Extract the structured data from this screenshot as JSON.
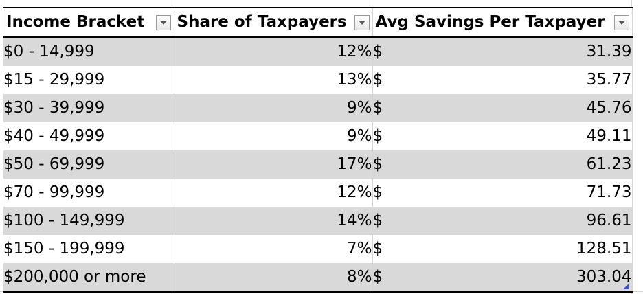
{
  "table": {
    "headers": [
      "Income Bracket",
      "Share of Taxpayers",
      "Avg Savings Per Taxpayer"
    ],
    "currency_symbol": "$",
    "rows": [
      {
        "bracket": "$0 - 14,999",
        "share": "12%",
        "savings": "31.39"
      },
      {
        "bracket": "$15 - 29,999",
        "share": "13%",
        "savings": "35.77"
      },
      {
        "bracket": "$30 - 39,999",
        "share": "9%",
        "savings": "45.76"
      },
      {
        "bracket": "$40 - 49,999",
        "share": "9%",
        "savings": "49.11"
      },
      {
        "bracket": "$50 - 69,999",
        "share": "17%",
        "savings": "61.23"
      },
      {
        "bracket": "$70 - 99,999",
        "share": "12%",
        "savings": "71.73"
      },
      {
        "bracket": "$100 - 149,999",
        "share": "14%",
        "savings": "96.61"
      },
      {
        "bracket": "$150 - 199,999",
        "share": "7%",
        "savings": "128.51"
      },
      {
        "bracket": "$200,000 or more",
        "share": "8%",
        "savings": "303.04"
      }
    ]
  },
  "icons": {
    "filter": "filter-dropdown-icon",
    "resize": "table-resize-handle-icon"
  },
  "colors": {
    "band": "#d9d9d9",
    "border": "#000000",
    "gridline": "#d4d4d4",
    "resize_handle": "#3a56c4"
  }
}
